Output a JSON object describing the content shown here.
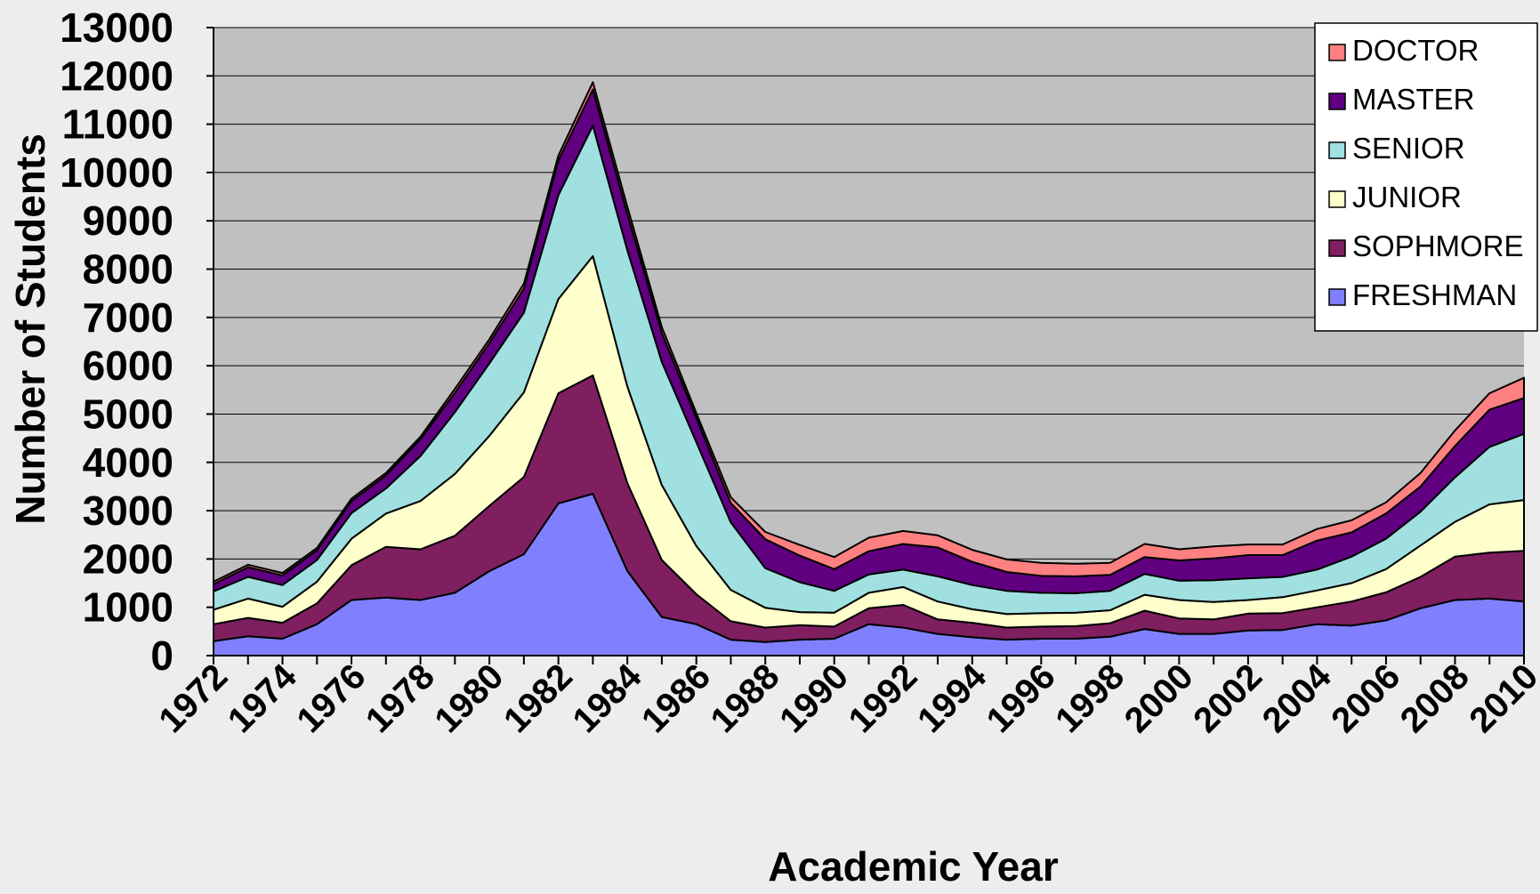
{
  "chart_data": {
    "type": "area",
    "stacked": true,
    "title": "",
    "xlabel": "Academic Year",
    "ylabel": "Number of Students",
    "ylim": [
      0,
      13000
    ],
    "yticks": [
      "0",
      "1000",
      "2000",
      "3000",
      "4000",
      "5000",
      "6000",
      "7000",
      "8000",
      "9000",
      "10000",
      "11000",
      "12000",
      "13000"
    ],
    "xtick_labels": [
      "1972",
      "1974",
      "1976",
      "1978",
      "1980",
      "1982",
      "1984",
      "1986",
      "1988",
      "1990",
      "1992",
      "1994",
      "1996",
      "1998",
      "2000",
      "2002",
      "2004",
      "2006",
      "2008",
      "2010"
    ],
    "grid": true,
    "legend_position": "top-right",
    "plot_background": "#c0c0c0",
    "x": [
      1972,
      1973,
      1974,
      1975,
      1976,
      1977,
      1978,
      1979,
      1980,
      1981,
      1982,
      1983,
      1984,
      1985,
      1986,
      1987,
      1988,
      1989,
      1990,
      1991,
      1992,
      1993,
      1994,
      1995,
      1996,
      1997,
      1998,
      1999,
      2000,
      2001,
      2002,
      2003,
      2004,
      2005,
      2006,
      2007,
      2008,
      2009,
      2010
    ],
    "series": [
      {
        "name": "FRESHMAN",
        "color": "#8080ff",
        "values": [
          300,
          400,
          350,
          650,
          1150,
          1200,
          1150,
          1300,
          1750,
          2100,
          3150,
          3350,
          1750,
          800,
          650,
          330,
          280,
          330,
          350,
          650,
          580,
          450,
          380,
          330,
          350,
          350,
          390,
          550,
          450,
          450,
          520,
          530,
          650,
          620,
          730,
          980,
          1150,
          1180,
          1120
        ]
      },
      {
        "name": "SOPHMORE",
        "color": "#7f1f5f",
        "values": [
          350,
          380,
          330,
          430,
          720,
          1050,
          1050,
          1180,
          1350,
          1600,
          2280,
          2450,
          1820,
          1180,
          620,
          380,
          300,
          300,
          250,
          330,
          470,
          300,
          300,
          250,
          250,
          260,
          280,
          380,
          320,
          300,
          350,
          350,
          350,
          500,
          580,
          650,
          900,
          950,
          1050
        ]
      },
      {
        "name": "JUNIOR",
        "color": "#ffffcc",
        "values": [
          300,
          400,
          330,
          450,
          550,
          690,
          1000,
          1280,
          1450,
          1750,
          1950,
          2470,
          2000,
          1550,
          1000,
          650,
          410,
          270,
          290,
          320,
          370,
          370,
          280,
          280,
          280,
          280,
          270,
          330,
          380,
          360,
          280,
          330,
          350,
          380,
          480,
          650,
          720,
          1000,
          1050
        ]
      },
      {
        "name": "SENIOR",
        "color": "#a0e0e0",
        "values": [
          380,
          450,
          450,
          450,
          530,
          520,
          930,
          1280,
          1500,
          1650,
          2150,
          2700,
          2820,
          2550,
          2150,
          1400,
          820,
          620,
          450,
          380,
          360,
          520,
          500,
          480,
          420,
          400,
          400,
          430,
          400,
          450,
          450,
          420,
          430,
          550,
          630,
          700,
          920,
          1190,
          1370
        ]
      },
      {
        "name": "MASTER",
        "color": "#600080",
        "values": [
          150,
          200,
          200,
          200,
          250,
          270,
          350,
          400,
          420,
          500,
          720,
          750,
          750,
          600,
          500,
          400,
          600,
          550,
          450,
          480,
          530,
          600,
          480,
          390,
          350,
          350,
          330,
          350,
          420,
          450,
          480,
          450,
          600,
          500,
          520,
          520,
          650,
          770,
          740
        ]
      },
      {
        "name": "DOCTOR",
        "color": "#ff8080",
        "values": [
          50,
          50,
          50,
          50,
          50,
          50,
          50,
          80,
          80,
          100,
          100,
          150,
          150,
          120,
          100,
          120,
          150,
          220,
          250,
          280,
          270,
          250,
          250,
          260,
          270,
          260,
          250,
          270,
          230,
          250,
          220,
          220,
          240,
          250,
          230,
          280,
          320,
          340,
          420
        ]
      }
    ]
  }
}
